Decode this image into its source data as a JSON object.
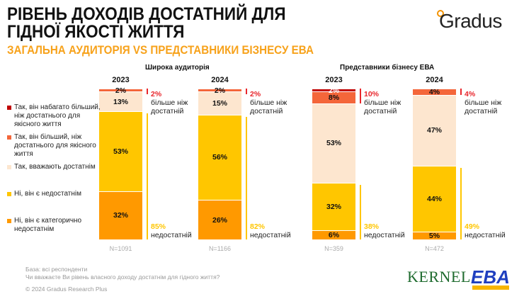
{
  "header": {
    "title_line1": "РІВЕНЬ ДОХОДІВ ДОСТАТНИЙ ДЛЯ",
    "title_line2": "ГІДНОЇ ЯКОСТІ ЖИТТЯ",
    "subtitle": "ЗАГАЛЬНА АУДИТОРІЯ VS ПРЕДСТАВНИКИ БІЗНЕСУ ЕВА",
    "logo": "Gradus"
  },
  "chart_data": {
    "type": "bar",
    "stacked": true,
    "groups": [
      "Широка аудиторія",
      "Представники бізнесу ЕВА"
    ],
    "categories": [
      "2023",
      "2024",
      "2023",
      "2024"
    ],
    "sample_sizes": [
      "N=1091",
      "N=1166",
      "N=359",
      "N=472"
    ],
    "series": [
      {
        "name": "Ні, він є категорично недостатнім",
        "color": "#ff9900",
        "values": [
          32,
          26,
          6,
          5
        ]
      },
      {
        "name": "Ні, він є недостатнім",
        "color": "#ffc600",
        "values": [
          53,
          56,
          32,
          44
        ]
      },
      {
        "name": "Так, вважають достатнім",
        "color": "#fde6cf",
        "values": [
          13,
          15,
          53,
          47
        ]
      },
      {
        "name": "Так, він більший, ніж достатнього для якісного життя",
        "color": "#f4663a",
        "values": [
          2,
          2,
          8,
          4
        ]
      },
      {
        "name": "Так, він набагато більший, ніж достатнього для якісного життя",
        "color": "#c00000",
        "values": [
          0,
          0,
          2,
          0
        ]
      }
    ],
    "annotations": {
      "more_than_enough": {
        "values": [
          "2%",
          "2%",
          "10%",
          "4%"
        ],
        "label_line1": "більше ніж",
        "label_line2": "достатній",
        "color": "#e8262c"
      },
      "not_enough": {
        "values": [
          "85%",
          "82%",
          "38%",
          "49%"
        ],
        "label": "недостатній",
        "color": "#ffc600"
      }
    },
    "ylim": [
      0,
      100
    ]
  },
  "legend_order": [
    4,
    3,
    2,
    1,
    0
  ],
  "footer": {
    "base": "База: всі респонденти",
    "question": "Чи вважаєте Ви рівень власного доходу достатнім для гідного життя?",
    "copyright": "© 2024 Gradus Research Plus"
  },
  "partners": {
    "kernel": "KERNEL",
    "eba": "EBA"
  }
}
